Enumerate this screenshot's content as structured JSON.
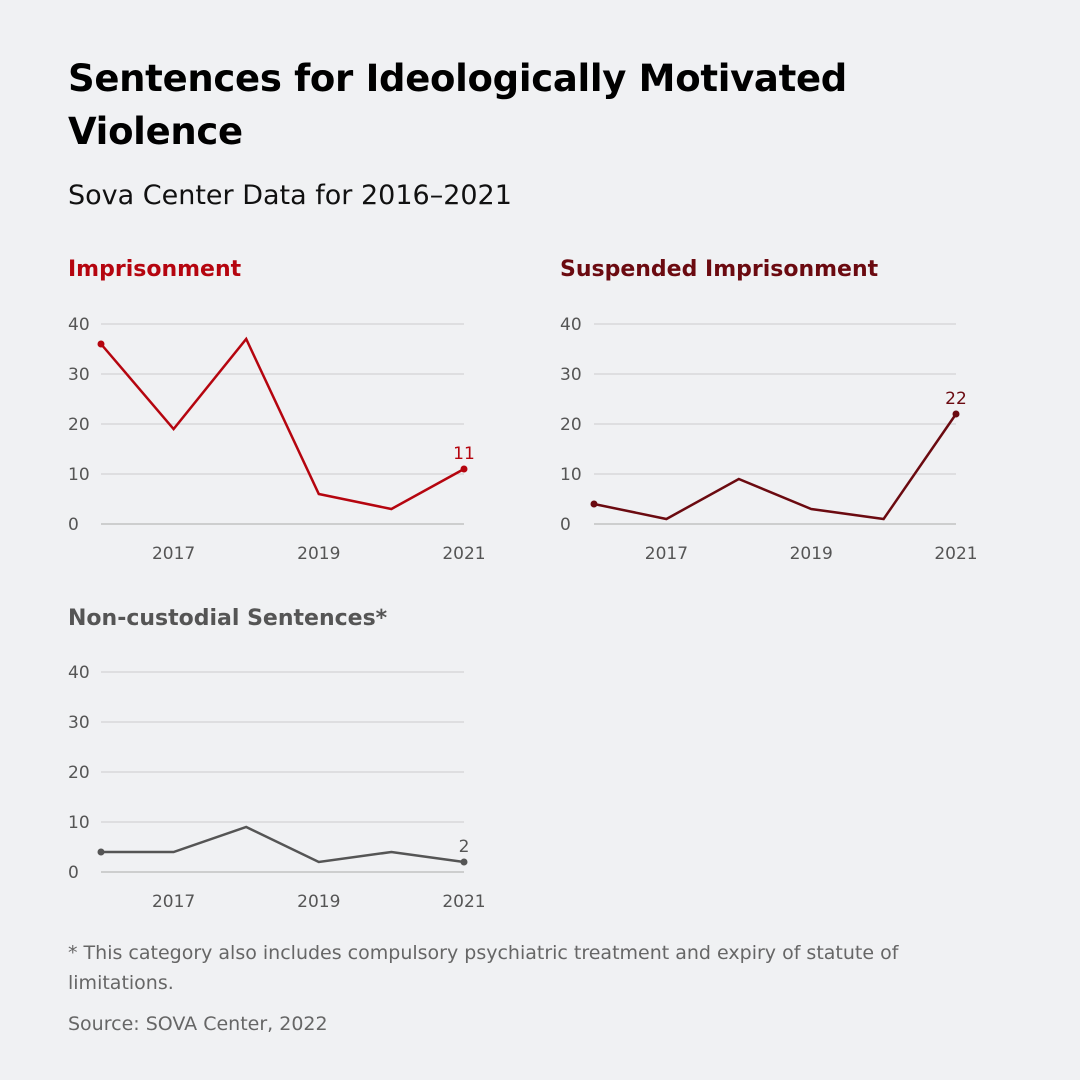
{
  "title": "Sentences for Ideologically Motivated Violence",
  "subtitle": "Sova Center Data for 2016–2021",
  "footnote": "* This category also includes compulsory psychiatric treatment and expiry of statute of limitations.",
  "source": "Source: SOVA Center, 2022",
  "chart_data": [
    {
      "type": "line",
      "title": "Imprisonment",
      "color": "#b5050f",
      "x": [
        2016,
        2017,
        2018,
        2019,
        2020,
        2021
      ],
      "values": [
        36,
        19,
        37,
        6,
        3,
        11
      ],
      "x_tick_labels": [
        "2017",
        "2019",
        "2021"
      ],
      "y_ticks": [
        0,
        10,
        20,
        30,
        40
      ],
      "ylim": [
        0,
        40
      ],
      "grid": true,
      "end_label": "11"
    },
    {
      "type": "line",
      "title": "Suspended Imprisonment",
      "color": "#6b0a10",
      "x": [
        2016,
        2017,
        2018,
        2019,
        2020,
        2021
      ],
      "values": [
        4,
        1,
        9,
        3,
        1,
        22
      ],
      "x_tick_labels": [
        "2017",
        "2019",
        "2021"
      ],
      "y_ticks": [
        0,
        10,
        20,
        30,
        40
      ],
      "ylim": [
        0,
        40
      ],
      "grid": true,
      "end_label": "22"
    },
    {
      "type": "line",
      "title": "Non-custodial Sentences*",
      "color": "#555555",
      "x": [
        2016,
        2017,
        2018,
        2019,
        2020,
        2021
      ],
      "values": [
        4,
        4,
        9,
        2,
        4,
        2
      ],
      "x_tick_labels": [
        "2017",
        "2019",
        "2021"
      ],
      "y_ticks": [
        0,
        10,
        20,
        30,
        40
      ],
      "ylim": [
        0,
        40
      ],
      "grid": true,
      "end_label": "2"
    }
  ]
}
